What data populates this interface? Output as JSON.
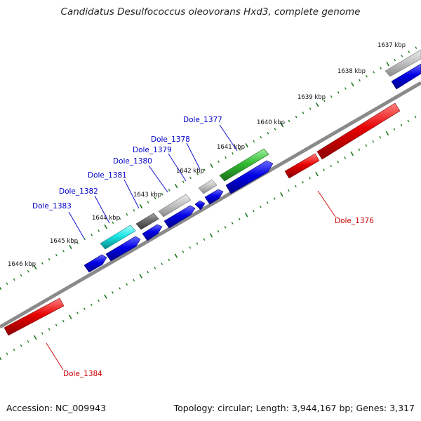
{
  "title": "Candidatus Desulfococcus oleovorans Hxd3, complete genome",
  "footer": {
    "accession": "Accession: NC_009943",
    "topology": "Topology: circular; Length: 3,944,167 bp; Genes: 3,317"
  },
  "colors": {
    "backbone": "#8a8a8a",
    "tick": "#1f7a1f",
    "gene_blue": "#0000e6",
    "gene_red": "#e60000",
    "gene_cyan": "#19e6e6",
    "gene_green": "#33bb33",
    "gene_light_gray": "#c4c4c4",
    "gene_dark_gray": "#6a6a6a",
    "label_blue": "#0000cc",
    "label_red": "#cc0000"
  },
  "scale_labels": [
    "1637 kbp",
    "1638 kbp",
    "1639 kbp",
    "1640 kbp",
    "1641 kbp",
    "1642 kbp",
    "1643 kbp",
    "1644 kbp",
    "1645 kbp",
    "1646 kbp"
  ],
  "gene_labels": [
    "Dole_1377",
    "Dole_1378",
    "Dole_1379",
    "Dole_1380",
    "Dole_1381",
    "Dole_1382",
    "Dole_1383",
    "Dole_1376",
    "Dole_1384"
  ]
}
